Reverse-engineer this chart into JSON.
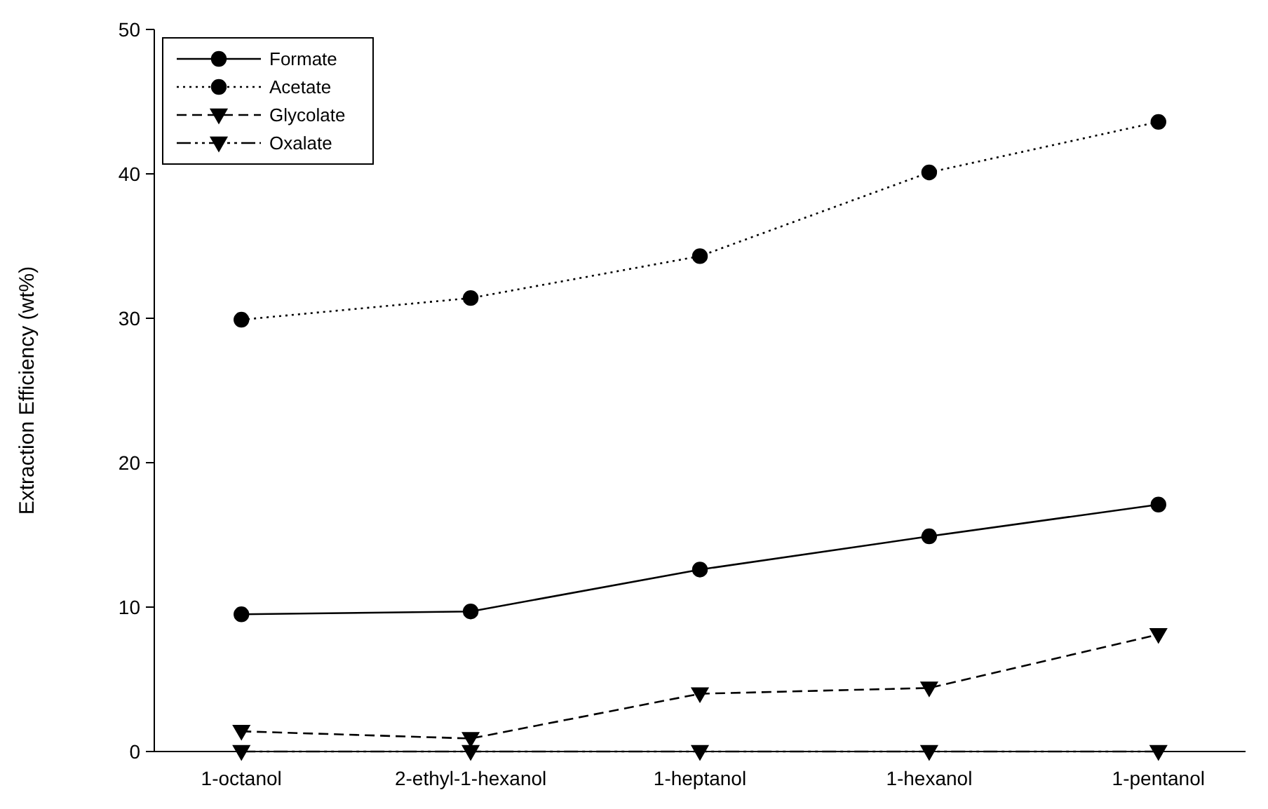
{
  "chart_data": {
    "type": "line",
    "ylabel": "Extraction Efficiency (wt%)",
    "categories": [
      "1-octanol",
      "2-ethyl-1-hexanol",
      "1-heptanol",
      "1-hexanol",
      "1-pentanol"
    ],
    "ylim": [
      0,
      50
    ],
    "yticks": [
      0,
      10,
      20,
      30,
      40,
      50
    ],
    "grid": false,
    "legend": "top left",
    "series": [
      {
        "name": "Formate",
        "color": "#000000",
        "line_style": "solid",
        "marker": "circle",
        "values": [
          9.5,
          9.7,
          12.6,
          14.9,
          17.1
        ]
      },
      {
        "name": "Acetate",
        "color": "#000000",
        "line_style": "dotted",
        "marker": "circle",
        "values": [
          29.9,
          31.4,
          34.3,
          40.1,
          43.6
        ]
      },
      {
        "name": "Glycolate",
        "color": "#000000",
        "line_style": "dashed",
        "marker": "triangle",
        "values": [
          1.4,
          0.9,
          4.0,
          4.4,
          8.1
        ]
      },
      {
        "name": "Oxalate",
        "color": "#000000",
        "line_style": "dashdot",
        "marker": "triangle",
        "values": [
          0,
          0,
          0,
          0,
          0
        ]
      }
    ]
  }
}
